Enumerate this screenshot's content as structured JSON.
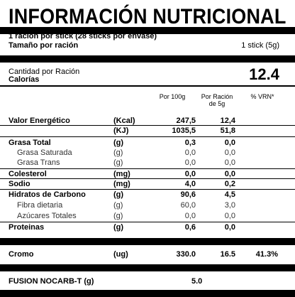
{
  "title": "INFORMACIÓN NUTRICIONAL",
  "serving": {
    "line1": "1 ración por stick (28 sticks por envase)",
    "size_label": "Tamaño por ración",
    "size_value": "1 stick (5g)"
  },
  "calories": {
    "amount_label": "Cantidad por Ración",
    "label": "Calorías",
    "value": "12.4"
  },
  "columns": {
    "per100": "Por 100g",
    "per_serving_l1": "Por Ración",
    "per_serving_l2": "de 5g",
    "vrn": "% VRN*"
  },
  "rows": [
    {
      "name": "Valor Energético",
      "unit": "(Kcal)",
      "per100": "247,5",
      "per_serving": "12,4",
      "vrn": ""
    },
    {
      "name": "",
      "unit": "(KJ)",
      "per100": "1035,5",
      "per_serving": "51,8",
      "vrn": ""
    },
    {
      "name": "Grasa Total",
      "unit": "(g)",
      "per100": "0,3",
      "per_serving": "0,0",
      "vrn": ""
    },
    {
      "name": "Grasa Saturada",
      "unit": "(g)",
      "per100": "0,0",
      "per_serving": "0,0",
      "vrn": ""
    },
    {
      "name": "Grasa Trans",
      "unit": "(g)",
      "per100": "0,0",
      "per_serving": "0,0",
      "vrn": ""
    },
    {
      "name": "Colesterol",
      "unit": "(mg)",
      "per100": "0,0",
      "per_serving": "0,0",
      "vrn": ""
    },
    {
      "name": "Sodio",
      "unit": "(mg)",
      "per100": "4,0",
      "per_serving": "0,2",
      "vrn": ""
    },
    {
      "name": "Hidratos de Carbono",
      "unit": "(g)",
      "per100": "90,6",
      "per_serving": "4,5",
      "vrn": ""
    },
    {
      "name": "Fibra dietaria",
      "unit": "(g)",
      "per100": "60,0",
      "per_serving": "3,0",
      "vrn": ""
    },
    {
      "name": "Azúcares Totales",
      "unit": "(g)",
      "per100": "0,0",
      "per_serving": "0,0",
      "vrn": ""
    },
    {
      "name": "Proteinas",
      "unit": "(g)",
      "per100": "0,6",
      "per_serving": "0,0",
      "vrn": ""
    }
  ],
  "cromo": {
    "name": "Cromo",
    "unit": "(ug)",
    "per100": "330.0",
    "per_serving": "16.5",
    "vrn": "41.3%"
  },
  "fusion": {
    "name": "FUSION NOCARB-T (g)",
    "value": "5.0"
  }
}
